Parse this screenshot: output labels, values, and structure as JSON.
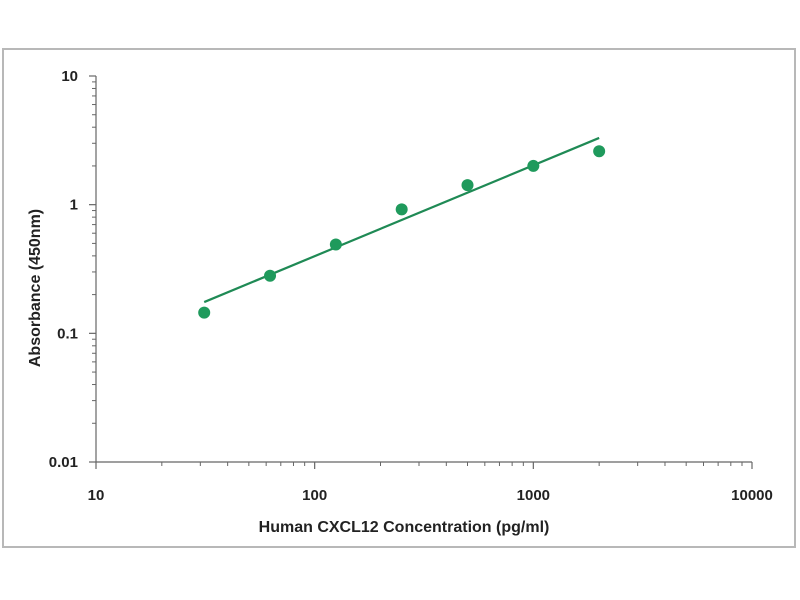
{
  "chart_data": {
    "type": "scatter",
    "title": "",
    "xlabel": "Human CXCL12 Concentration (pg/ml)",
    "ylabel": "Absorbance (450nm)",
    "x_scale": "log",
    "y_scale": "log",
    "xlim": [
      10,
      10000
    ],
    "ylim": [
      0.01,
      10
    ],
    "x_ticks": [
      "10",
      "100",
      "1000",
      "10000"
    ],
    "y_ticks": [
      "0.01",
      "0.1",
      "1",
      "10"
    ],
    "grid": false,
    "legend": "none",
    "point_color": "#1f9a5c",
    "line_color": "#1f8a55",
    "series": [
      {
        "x": [
          31.25,
          62.5,
          125,
          250,
          500,
          1000,
          2000
        ],
        "y": [
          0.145,
          0.28,
          0.49,
          0.92,
          1.42,
          2.0,
          2.6
        ]
      }
    ],
    "fit_line": {
      "x": [
        31.25,
        2000
      ],
      "y": [
        0.175,
        3.3
      ]
    }
  }
}
